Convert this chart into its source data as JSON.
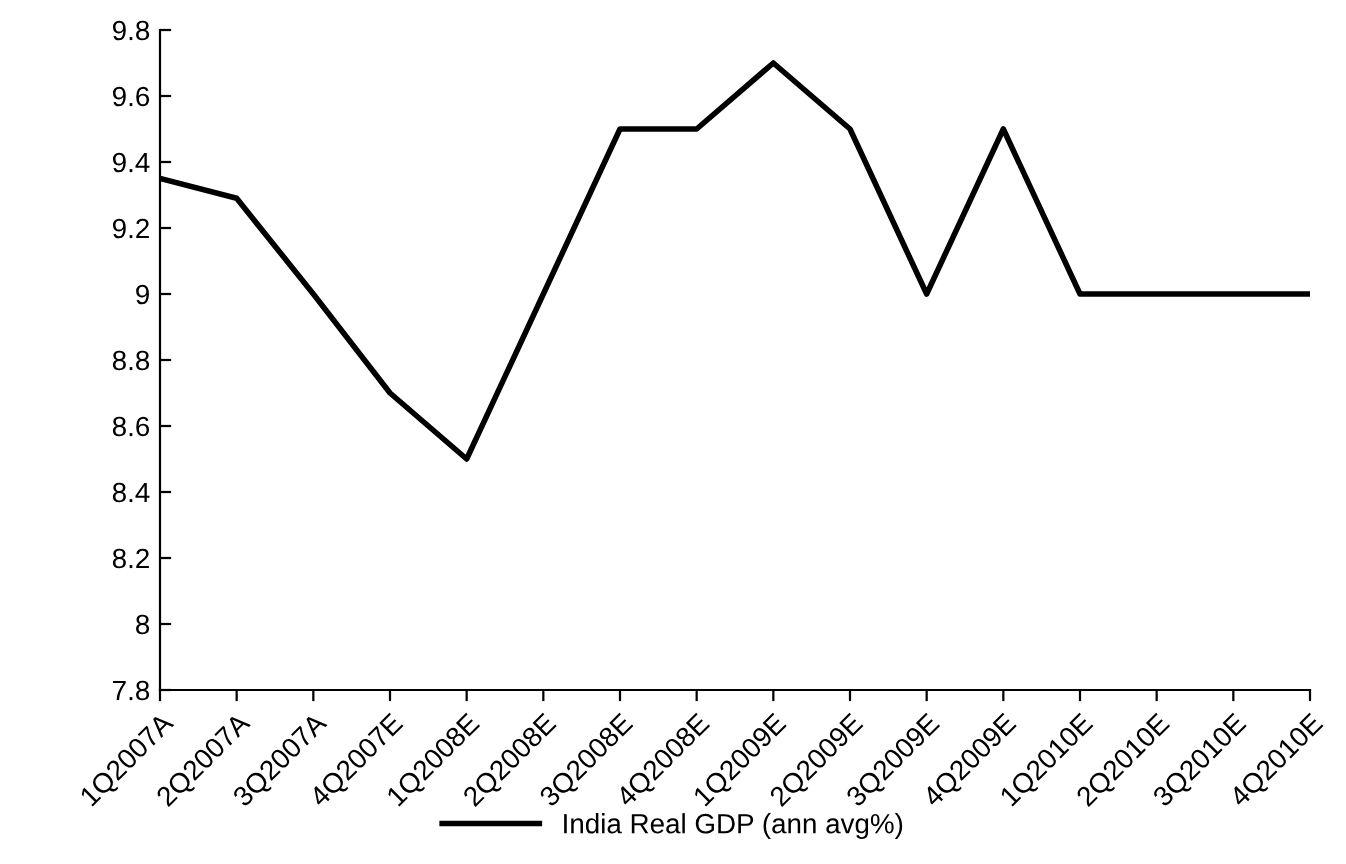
{
  "chart_data": {
    "type": "line",
    "categories": [
      "1Q2007A",
      "2Q2007A",
      "3Q2007A",
      "4Q2007E",
      "1Q2008E",
      "2Q2008E",
      "3Q2008E",
      "4Q2008E",
      "1Q2009E",
      "2Q2009E",
      "3Q2009E",
      "4Q2009E",
      "1Q2010E",
      "2Q2010E",
      "3Q2010E",
      "4Q2010E"
    ],
    "series": [
      {
        "name": "India Real GDP (ann avg%)",
        "color": "#000000",
        "values": [
          9.35,
          9.29,
          9.0,
          8.7,
          8.5,
          9.0,
          9.5,
          9.5,
          9.7,
          9.5,
          9.0,
          9.5,
          9.0,
          9.0,
          9.0,
          9.0
        ]
      }
    ],
    "ylim": [
      7.8,
      9.8
    ],
    "yticks": [
      7.8,
      8,
      8.2,
      8.4,
      8.6,
      8.8,
      9,
      9.2,
      9.4,
      9.6,
      9.8
    ],
    "grid": false,
    "legend": "bottom",
    "marker": "none",
    "line_style": "solid"
  }
}
